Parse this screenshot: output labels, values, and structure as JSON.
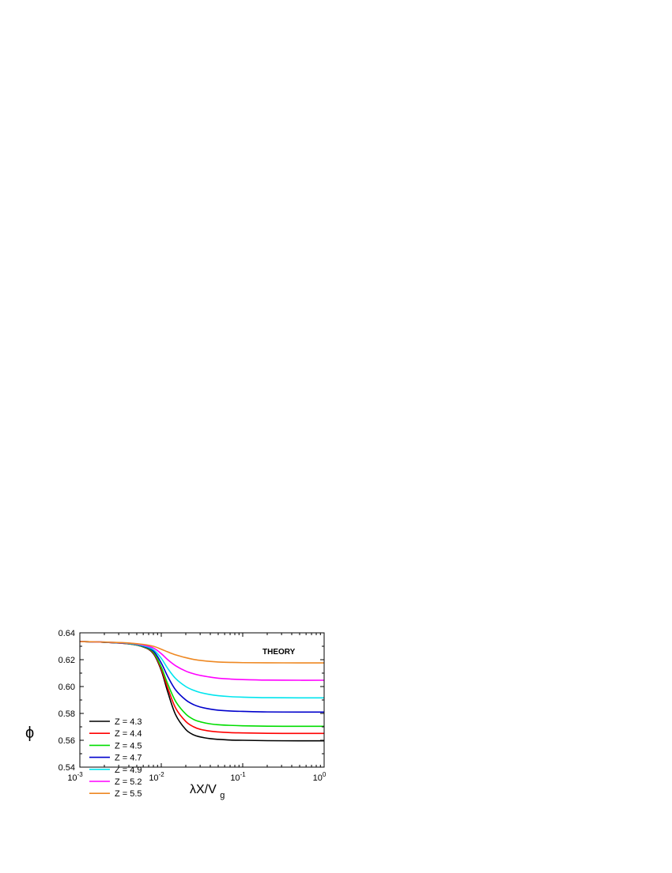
{
  "chart_data": {
    "type": "line",
    "xscale": "log",
    "xlim": [
      0.001,
      1
    ],
    "ylim": [
      0.54,
      0.64
    ],
    "x_ticks": [
      {
        "base": "10",
        "exp": "-3"
      },
      {
        "base": "10",
        "exp": "-2"
      },
      {
        "base": "10",
        "exp": "-1"
      },
      {
        "base": "10",
        "exp": "0"
      }
    ],
    "y_ticks": [
      "0.54",
      "0.56",
      "0.58",
      "0.60",
      "0.62",
      "0.64"
    ],
    "y_tick_values": [
      0.54,
      0.56,
      0.58,
      0.6,
      0.62,
      0.64
    ],
    "xlabel": {
      "main": "λX/V",
      "sub": "g"
    },
    "ylabel": "ϕ",
    "annotation": "THEORY",
    "grid": false,
    "legend_position": "bottom-left",
    "x": [
      0.001,
      0.002,
      0.004,
      0.006,
      0.008,
      0.01,
      0.012,
      0.015,
      0.02,
      0.025,
      0.03,
      0.04,
      0.05,
      0.07,
      0.1,
      0.2,
      0.5,
      1
    ],
    "series": [
      {
        "name": "Z = 4.3",
        "color": "#000000",
        "values": [
          0.6335,
          0.633,
          0.6318,
          0.6295,
          0.6245,
          0.612,
          0.596,
          0.579,
          0.568,
          0.564,
          0.5625,
          0.5612,
          0.5607,
          0.5602,
          0.56,
          0.5597,
          0.5596,
          0.5596
        ]
      },
      {
        "name": "Z = 4.4",
        "color": "#ff0000",
        "values": [
          0.6335,
          0.633,
          0.6318,
          0.6296,
          0.625,
          0.613,
          0.599,
          0.584,
          0.574,
          0.57,
          0.5682,
          0.5668,
          0.5662,
          0.5657,
          0.5655,
          0.5652,
          0.5651,
          0.5651
        ]
      },
      {
        "name": "Z = 4.5",
        "color": "#00dd00",
        "values": [
          0.6335,
          0.633,
          0.6319,
          0.6297,
          0.6255,
          0.6145,
          0.602,
          0.589,
          0.5795,
          0.5755,
          0.5738,
          0.5722,
          0.5716,
          0.5711,
          0.5708,
          0.5705,
          0.5704,
          0.5704
        ]
      },
      {
        "name": "Z = 4.7",
        "color": "#0000cc",
        "values": [
          0.6335,
          0.633,
          0.632,
          0.63,
          0.6265,
          0.6175,
          0.6075,
          0.5975,
          0.59,
          0.5865,
          0.5848,
          0.5832,
          0.5824,
          0.5818,
          0.5815,
          0.5811,
          0.581,
          0.581
        ]
      },
      {
        "name": "Z = 4.9",
        "color": "#00e5ee",
        "values": [
          0.6335,
          0.6331,
          0.6321,
          0.6304,
          0.6275,
          0.621,
          0.6135,
          0.606,
          0.6,
          0.5972,
          0.5956,
          0.594,
          0.5932,
          0.5925,
          0.5921,
          0.5917,
          0.5916,
          0.5916
        ]
      },
      {
        "name": "Z = 5.2",
        "color": "#ff00ff",
        "values": [
          0.6335,
          0.6331,
          0.6323,
          0.6309,
          0.6287,
          0.6245,
          0.62,
          0.6155,
          0.6115,
          0.6095,
          0.6083,
          0.607,
          0.6062,
          0.6056,
          0.6052,
          0.6048,
          0.6047,
          0.6047
        ]
      },
      {
        "name": "Z = 5.5",
        "color": "#ee8822",
        "values": [
          0.6335,
          0.6331,
          0.6324,
          0.6314,
          0.63,
          0.6278,
          0.6258,
          0.6236,
          0.6215,
          0.6202,
          0.6195,
          0.6187,
          0.6183,
          0.618,
          0.6178,
          0.6177,
          0.6176,
          0.6176
        ]
      }
    ]
  }
}
